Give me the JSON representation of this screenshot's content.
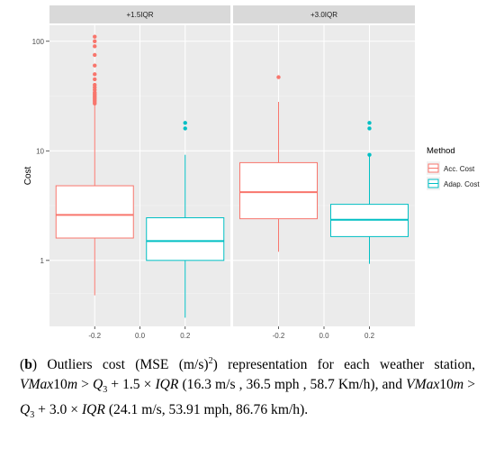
{
  "chart_data": {
    "type": "boxplot",
    "facets": [
      "+1.5IQR",
      "+3.0IQR"
    ],
    "ylabel": "Cost",
    "y_scale": "log10",
    "ylim": [
      0.25,
      140
    ],
    "y_ticks": [
      1,
      10,
      100
    ],
    "y_tick_labels": [
      "1",
      "10",
      "100"
    ],
    "x_ticks": [
      -0.2,
      0.0,
      0.2
    ],
    "x_tick_labels": [
      "-0.2",
      "0.0",
      "0.2"
    ],
    "xlim": [
      -0.4,
      0.4
    ],
    "grid": true,
    "legend": {
      "title": "Method",
      "position": "right",
      "entries": [
        {
          "label": "Acc. Cost",
          "color": "#F8766D"
        },
        {
          "label": "Adap. Cost",
          "color": "#00BFC4"
        }
      ]
    },
    "panels": [
      {
        "facet": "+1.5IQR",
        "boxes": [
          {
            "series": "Acc. Cost",
            "x": -0.2,
            "whisker_low": 0.48,
            "q1": 1.6,
            "median": 2.6,
            "q3": 4.8,
            "whisker_high": 26,
            "outliers": [
              27,
              28,
              29,
              30,
              31,
              32,
              33,
              34,
              36,
              38,
              40,
              45,
              50,
              60,
              75,
              90,
              100,
              110
            ]
          },
          {
            "series": "Adap. Cost",
            "x": 0.2,
            "whisker_low": 0.3,
            "q1": 1.0,
            "median": 1.5,
            "q3": 2.45,
            "whisker_high": 9.2,
            "outliers": [
              16,
              18
            ]
          }
        ]
      },
      {
        "facet": "+3.0IQR",
        "boxes": [
          {
            "series": "Acc. Cost",
            "x": -0.2,
            "whisker_low": 1.2,
            "q1": 2.4,
            "median": 4.2,
            "q3": 7.8,
            "whisker_high": 28,
            "outliers": [
              47
            ]
          },
          {
            "series": "Adap. Cost",
            "x": 0.2,
            "whisker_low": 0.93,
            "q1": 1.65,
            "median": 2.35,
            "q3": 3.25,
            "whisker_high": 9.0,
            "outliers": [
              9.2,
              16,
              18
            ]
          }
        ]
      }
    ]
  },
  "caption": {
    "label": "b",
    "p1": ") Outliers cost (MSE (m/s)",
    "p1sup": "2",
    "p2": ") representation for each weather station, ",
    "var1": "VMax",
    "var1b": "10",
    "var1c": "m",
    "gt1": " > ",
    "q1": "Q",
    "q1sub": "3",
    "plus1": " + 1.5 × ",
    "iqr1": "IQR",
    "p3": " (16.3 m/s , 36.5 mph , 58.7 Km/h), and ",
    "var2": "VMax",
    "var2b": "10",
    "var2c": "m",
    "gt2": " > ",
    "q2": "Q",
    "q2sub": "3",
    "plus2": " + 3.0 × ",
    "iqr2": "IQR",
    "p4": " (24.1 m/s, 53.91 mph, 86.76 km/h)."
  }
}
